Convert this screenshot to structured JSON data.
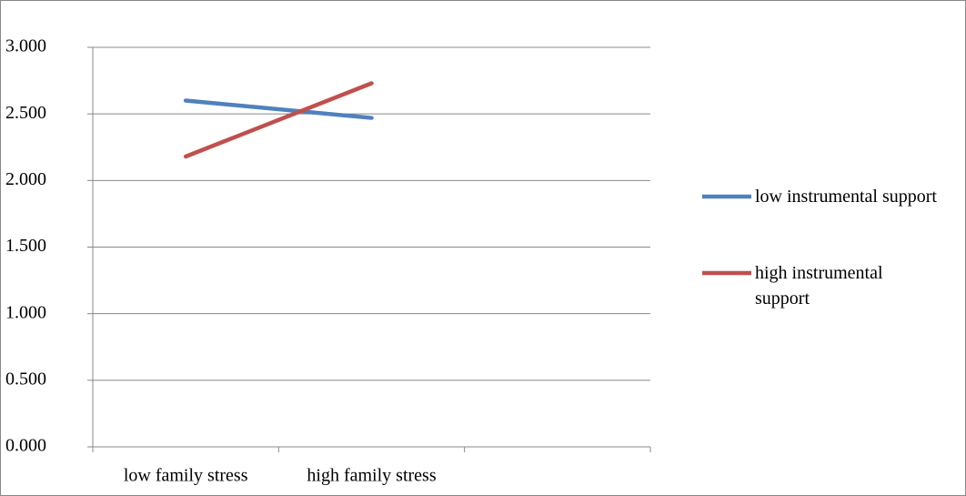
{
  "chart_data": {
    "type": "line",
    "categories": [
      "low family stress",
      "high family stress",
      null
    ],
    "series": [
      {
        "name": "low instrumental support",
        "color": "#4f81bd",
        "values": [
          2.6,
          2.47,
          null
        ]
      },
      {
        "name": "high instrumental support",
        "color": "#c0504d",
        "values": [
          2.18,
          2.73,
          null
        ]
      }
    ],
    "ylim": [
      0,
      3
    ],
    "yticks": [
      {
        "value": 0,
        "label": "0.000"
      },
      {
        "value": 0.5,
        "label": "0.500"
      },
      {
        "value": 1,
        "label": "1.000"
      },
      {
        "value": 1.5,
        "label": "1.500"
      },
      {
        "value": 2,
        "label": "2.000"
      },
      {
        "value": 2.5,
        "label": "2.500"
      },
      {
        "value": 3,
        "label": "3.000"
      }
    ],
    "grid": true,
    "legend": "right"
  }
}
